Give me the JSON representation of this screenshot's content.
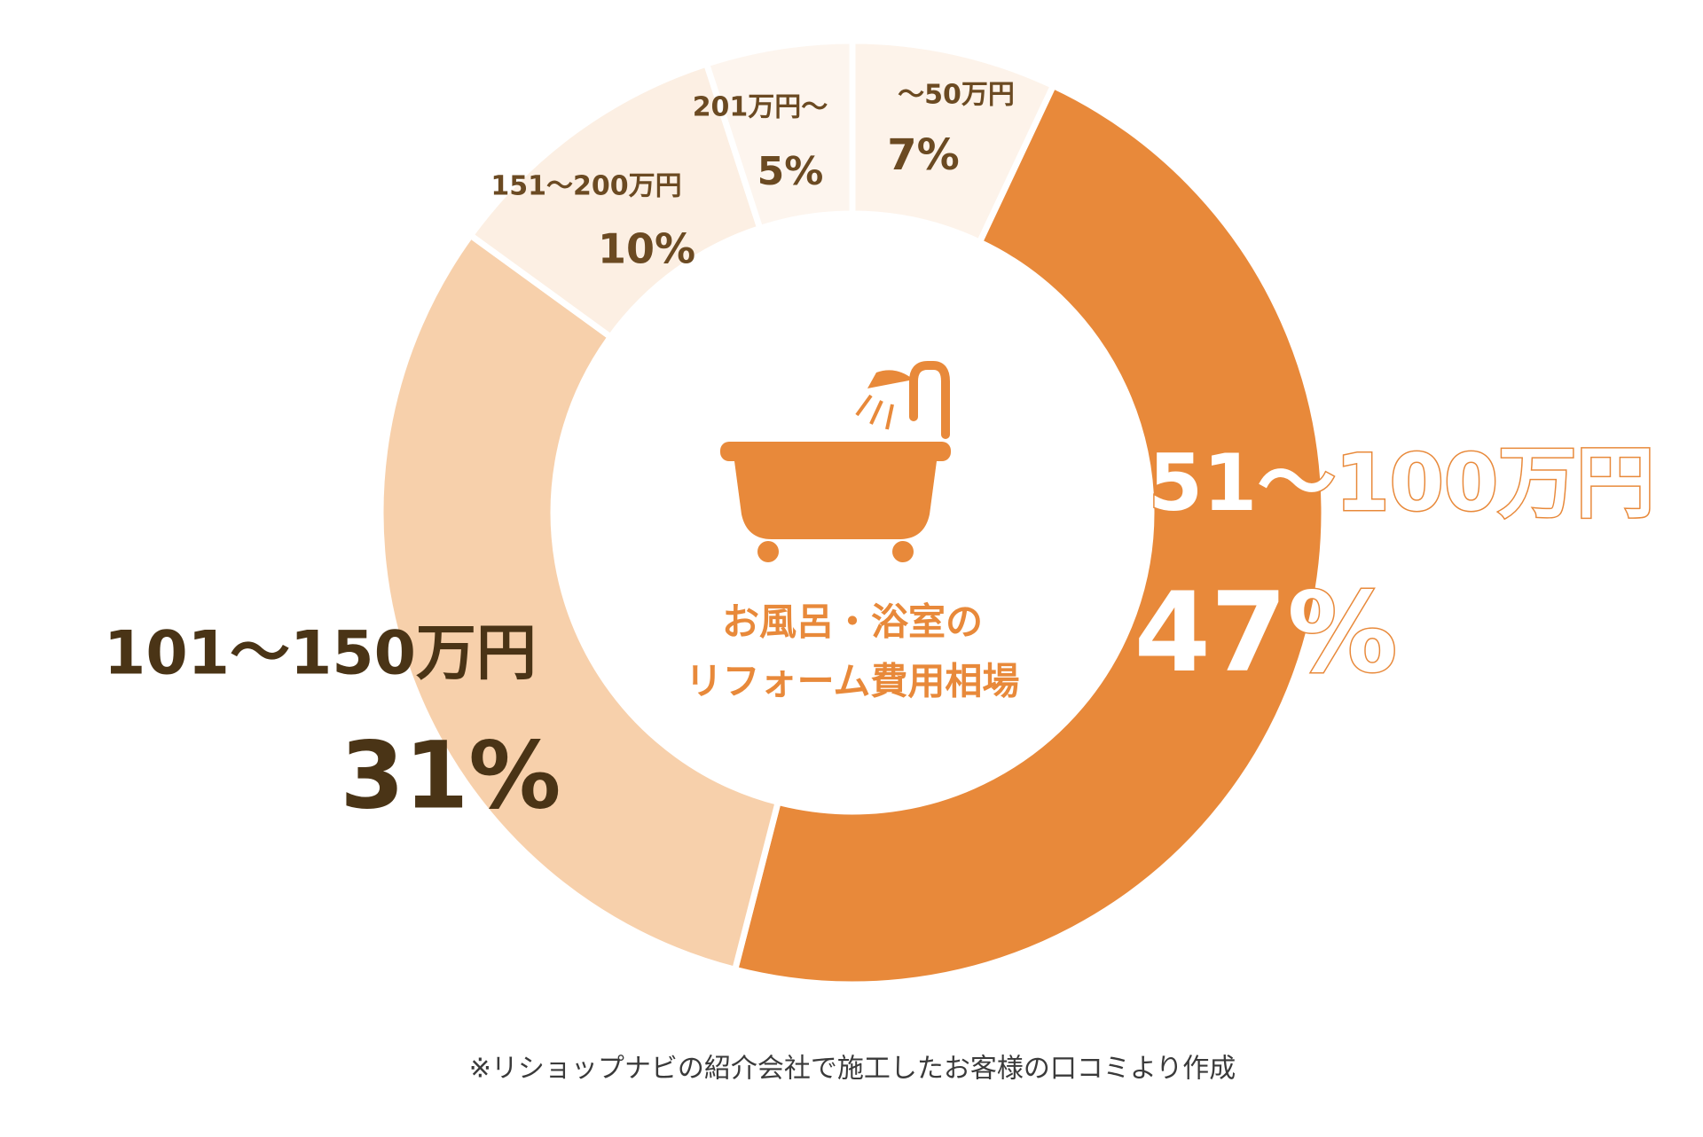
{
  "chart_data": {
    "type": "donut",
    "categories": [
      "〜50万円",
      "51〜100万円",
      "101〜150万円",
      "151〜200万円",
      "201万円〜"
    ],
    "values": [
      7,
      47,
      31,
      10,
      5
    ],
    "value_labels": [
      "7%",
      "47%",
      "31%",
      "10%",
      "5%"
    ],
    "colors": [
      "#fdf3ea",
      "#e8893a",
      "#f7d0ab",
      "#fcefe3",
      "#fdf5ee"
    ],
    "center_text": [
      "お風呂・浴室の",
      "リフォーム費用相場"
    ],
    "note": "※リショップナビの紹介会社で施工したお客様の口コミより作成"
  }
}
